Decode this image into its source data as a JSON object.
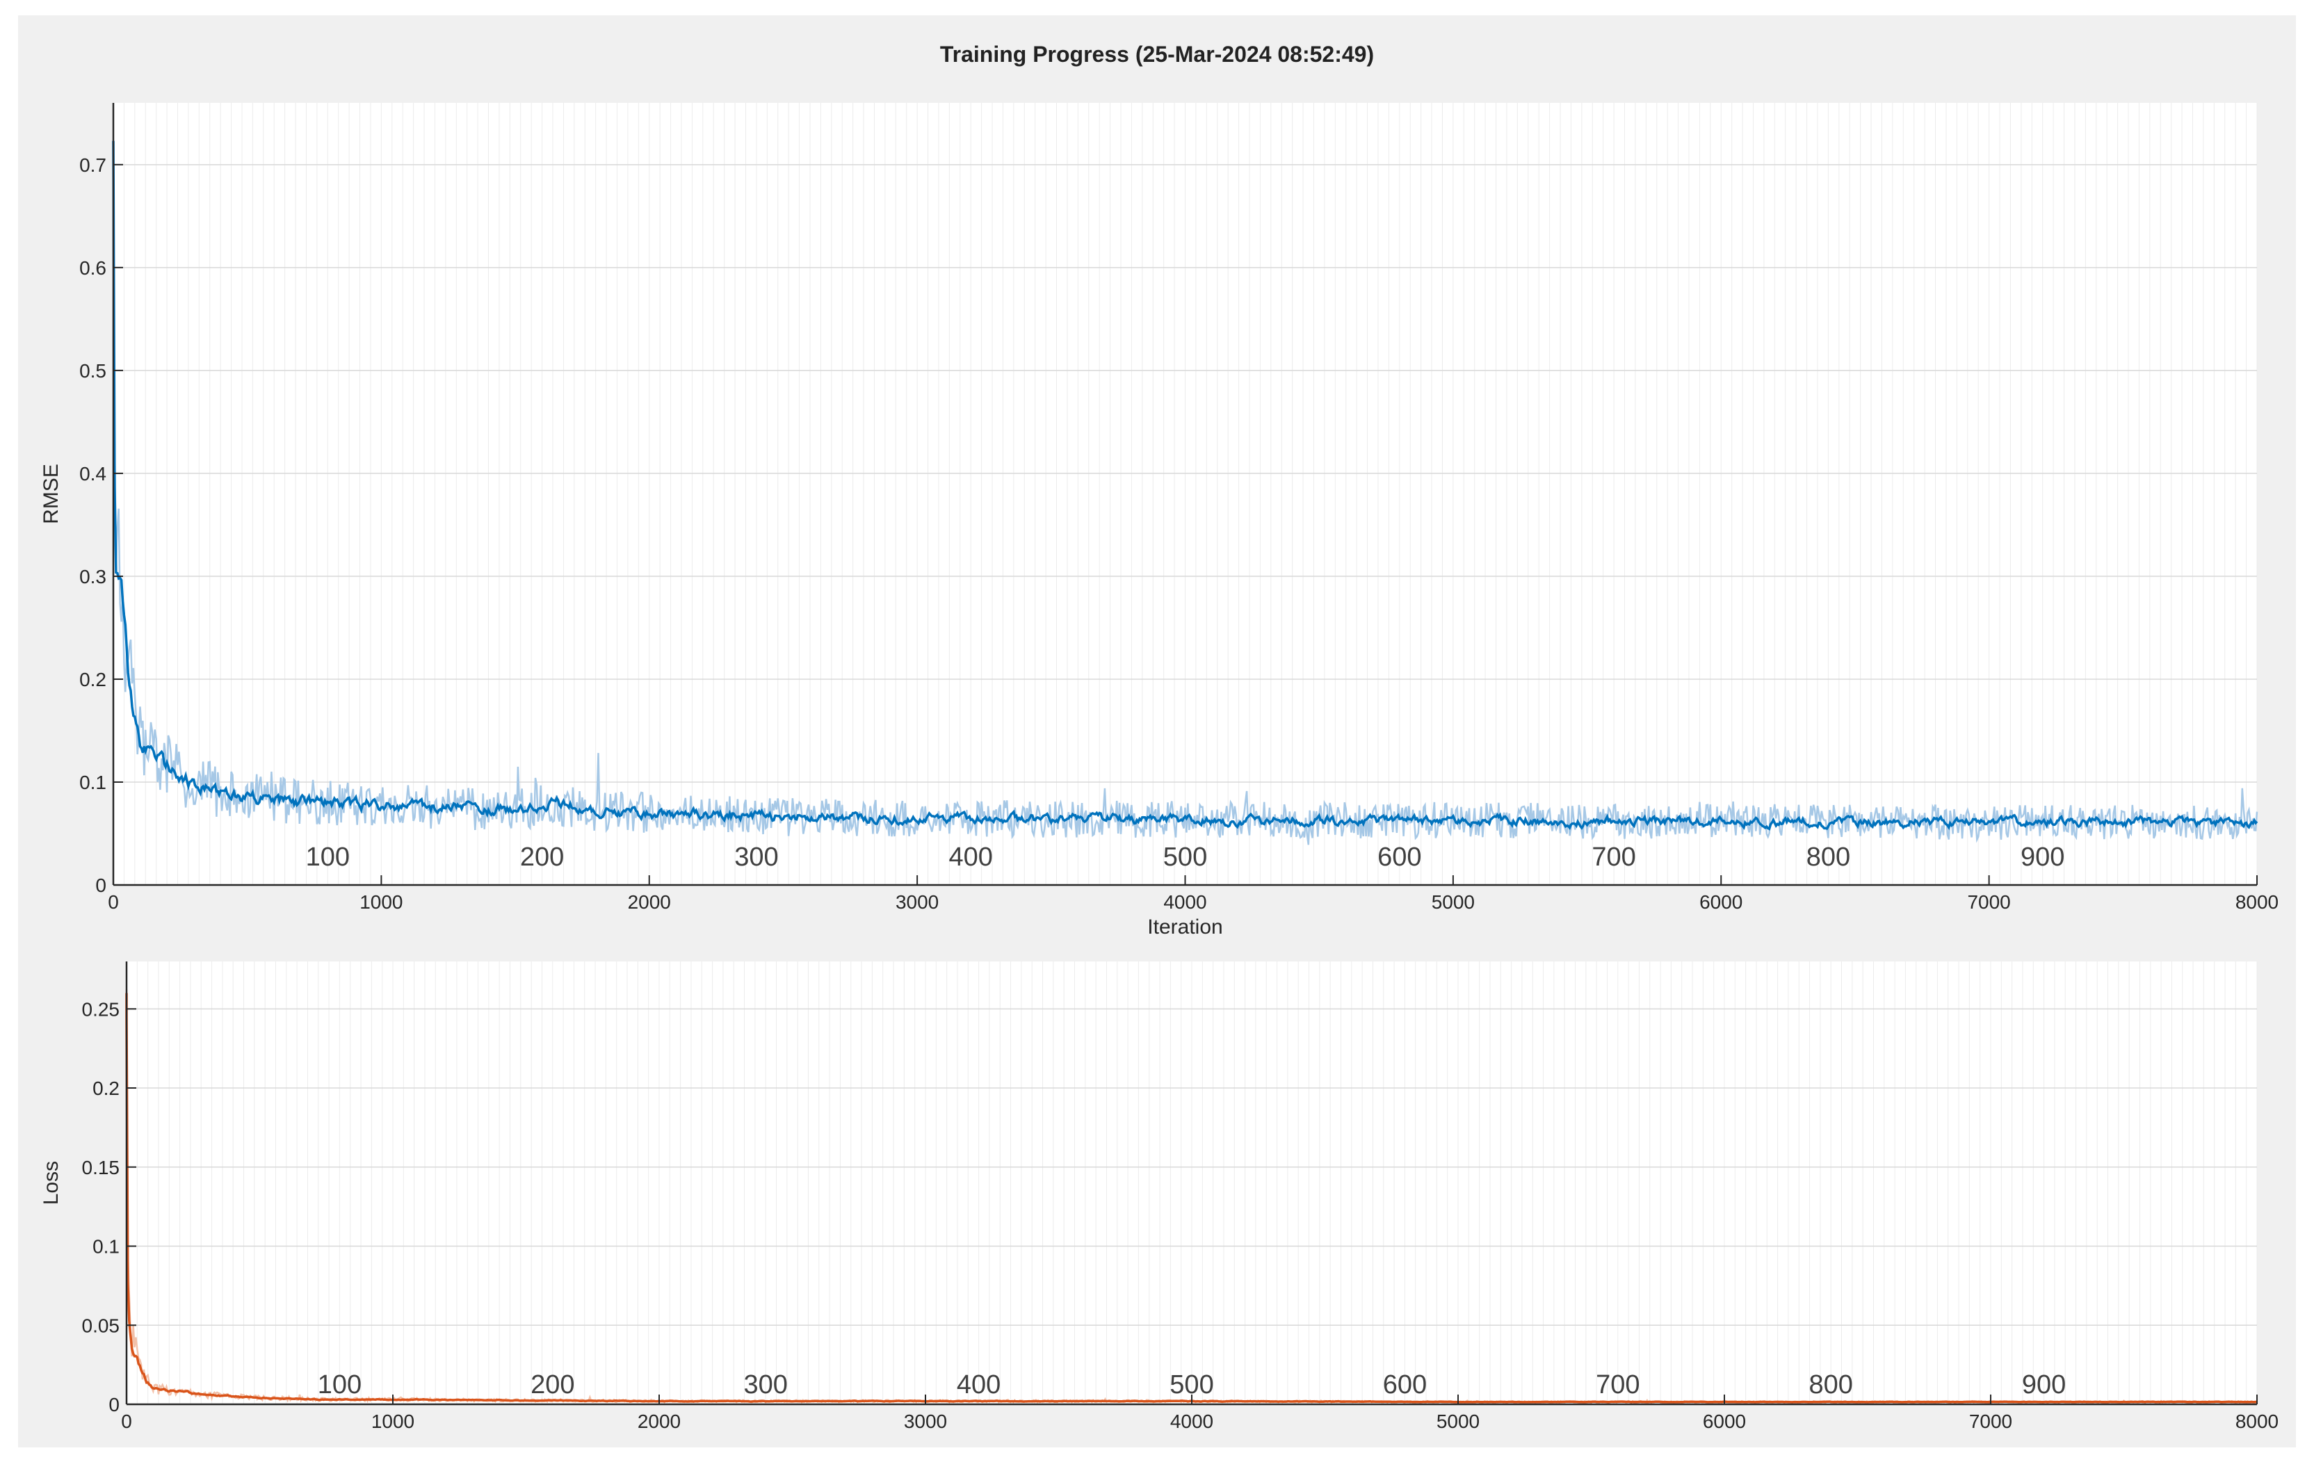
{
  "figure": {
    "title": "Training Progress (25-Mar-2024 08:52:49)"
  },
  "chart_data": [
    {
      "type": "line",
      "name": "rmse-panel",
      "title": "",
      "xlabel": "Iteration",
      "ylabel": "RMSE",
      "xlim": [
        0,
        8000
      ],
      "ylim": [
        0,
        0.76
      ],
      "xticks": [
        0,
        1000,
        2000,
        3000,
        4000,
        5000,
        6000,
        7000,
        8000
      ],
      "xtick_labels": [
        "0",
        "1000",
        "2000",
        "3000",
        "4000",
        "5000",
        "6000",
        "7000",
        "8000"
      ],
      "yticks": [
        0,
        0.1,
        0.2,
        0.3,
        0.4,
        0.5,
        0.6,
        0.7
      ],
      "ytick_labels": [
        "0",
        "0.1",
        "0.2",
        "0.3",
        "0.4",
        "0.5",
        "0.6",
        "0.7"
      ],
      "epoch_labels": [
        "100",
        "200",
        "300",
        "400",
        "500",
        "600",
        "700",
        "800",
        "900"
      ],
      "epoch_positions": [
        800,
        1600,
        2400,
        3200,
        4000,
        4800,
        5600,
        6400,
        7200
      ],
      "grid": true,
      "colors": {
        "smoothed": "#0072bd",
        "raw": "#a6c8e6"
      },
      "series": [
        {
          "x": [
            0,
            5,
            10,
            20,
            30,
            50,
            75,
            100,
            150,
            200,
            300,
            400,
            500,
            750,
            1000,
            1250,
            1500,
            1650,
            1750,
            2000,
            2500,
            3000,
            3500,
            4000,
            4500,
            5000,
            5500,
            6000,
            6500,
            7000,
            7500,
            8000
          ],
          "y": [
            0.72,
            0.4,
            0.31,
            0.29,
            0.27,
            0.22,
            0.17,
            0.14,
            0.125,
            0.115,
            0.1,
            0.09,
            0.085,
            0.08,
            0.077,
            0.075,
            0.072,
            0.082,
            0.072,
            0.07,
            0.066,
            0.065,
            0.064,
            0.064,
            0.063,
            0.063,
            0.062,
            0.062,
            0.061,
            0.061,
            0.061,
            0.06
          ]
        }
      ]
    },
    {
      "type": "line",
      "name": "loss-panel",
      "title": "",
      "xlabel": "",
      "ylabel": "Loss",
      "xlim": [
        0,
        8000
      ],
      "ylim": [
        0,
        0.28
      ],
      "xticks": [
        0,
        1000,
        2000,
        3000,
        4000,
        5000,
        6000,
        7000,
        8000
      ],
      "xtick_labels": [
        "0",
        "1000",
        "2000",
        "3000",
        "4000",
        "5000",
        "6000",
        "7000",
        "8000"
      ],
      "yticks": [
        0,
        0.05,
        0.1,
        0.15,
        0.2,
        0.25
      ],
      "ytick_labels": [
        "0",
        "0.05",
        "0.1",
        "0.15",
        "0.2",
        "0.25"
      ],
      "epoch_labels": [
        "100",
        "200",
        "300",
        "400",
        "500",
        "600",
        "700",
        "800",
        "900"
      ],
      "epoch_positions": [
        800,
        1600,
        2400,
        3200,
        4000,
        4800,
        5600,
        6400,
        7200
      ],
      "grid": true,
      "colors": {
        "smoothed": "#d95319",
        "raw": "#f2c0a8"
      },
      "series": [
        {
          "x": [
            0,
            5,
            10,
            20,
            30,
            50,
            75,
            100,
            150,
            200,
            300,
            500,
            750,
            1000,
            1500,
            2000,
            3000,
            4000,
            5000,
            6000,
            7000,
            8000
          ],
          "y": [
            0.26,
            0.09,
            0.06,
            0.04,
            0.035,
            0.025,
            0.015,
            0.01,
            0.009,
            0.008,
            0.006,
            0.004,
            0.003,
            0.003,
            0.0025,
            0.002,
            0.002,
            0.002,
            0.0015,
            0.0015,
            0.0015,
            0.0015
          ]
        }
      ]
    }
  ]
}
